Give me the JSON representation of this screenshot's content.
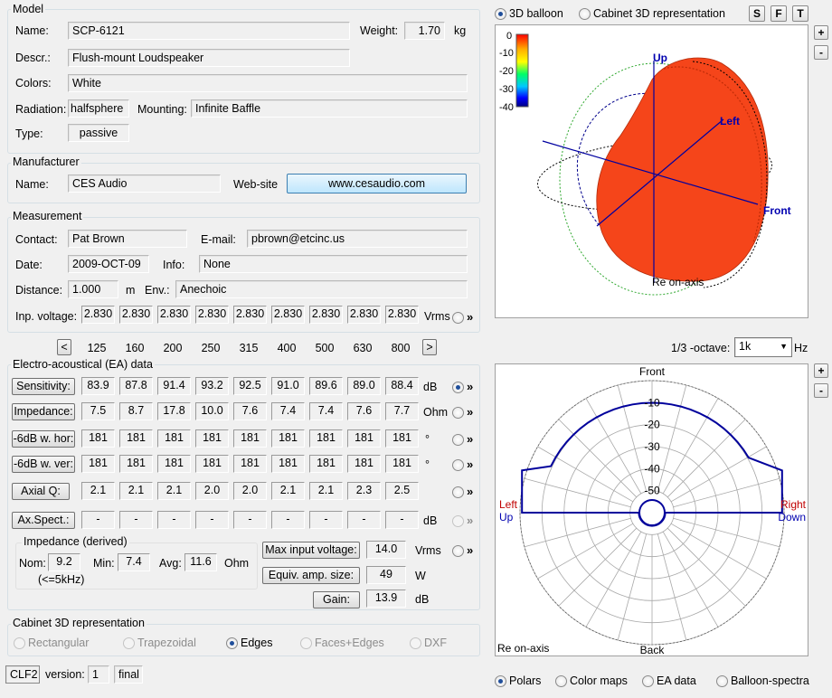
{
  "model": {
    "title": "Model",
    "name_label": "Name:",
    "name": "SCP-6121",
    "weight_label": "Weight:",
    "weight": "1.70",
    "weight_unit": "kg",
    "descr_label": "Descr.:",
    "descr": "Flush-mount Loudspeaker",
    "colors_label": "Colors:",
    "colors": "White",
    "radiation_label": "Radiation:",
    "radiation": "halfsphere",
    "mounting_label": "Mounting:",
    "mounting": "Infinite Baffle",
    "type_label": "Type:",
    "type": "passive"
  },
  "manufacturer": {
    "title": "Manufacturer",
    "name_label": "Name:",
    "name": "CES Audio",
    "website_label": "Web-site",
    "website": "www.cesaudio.com"
  },
  "measurement": {
    "title": "Measurement",
    "contact_label": "Contact:",
    "contact": "Pat Brown",
    "email_label": "E-mail:",
    "email": "pbrown@etcinc.us",
    "date_label": "Date:",
    "date": "2009-OCT-09",
    "info_label": "Info:",
    "info": "None",
    "distance_label": "Distance:",
    "distance": "1.000",
    "distance_unit": "m",
    "env_label": "Env.:",
    "env": "Anechoic",
    "inp_voltage_label": "Inp. voltage:",
    "inp_voltage": [
      "2.830",
      "2.830",
      "2.830",
      "2.830",
      "2.830",
      "2.830",
      "2.830",
      "2.830",
      "2.830"
    ],
    "inp_voltage_unit": "Vrms"
  },
  "frequencies": {
    "prev": "<",
    "next": ">",
    "values": [
      "125",
      "160",
      "200",
      "250",
      "315",
      "400",
      "500",
      "630",
      "800"
    ]
  },
  "ea": {
    "title": "Electro-acoustical (EA) data",
    "rows": [
      {
        "label": "Sensitivity:",
        "values": [
          "83.9",
          "87.8",
          "91.4",
          "93.2",
          "92.5",
          "91.0",
          "89.6",
          "89.0",
          "88.4"
        ],
        "unit": "dB"
      },
      {
        "label": "Impedance:",
        "values": [
          "7.5",
          "8.7",
          "17.8",
          "10.0",
          "7.6",
          "7.4",
          "7.4",
          "7.6",
          "7.7"
        ],
        "unit": "Ohm"
      },
      {
        "label": "-6dB w. hor:",
        "values": [
          "181",
          "181",
          "181",
          "181",
          "181",
          "181",
          "181",
          "181",
          "181"
        ],
        "unit": "°"
      },
      {
        "label": "-6dB w. ver:",
        "values": [
          "181",
          "181",
          "181",
          "181",
          "181",
          "181",
          "181",
          "181",
          "181"
        ],
        "unit": "°"
      },
      {
        "label": "Axial Q:",
        "values": [
          "2.1",
          "2.1",
          "2.1",
          "2.0",
          "2.0",
          "2.1",
          "2.1",
          "2.3",
          "2.5"
        ],
        "unit": ""
      },
      {
        "label": "Ax.Spect.:",
        "values": [
          "-",
          "-",
          "-",
          "-",
          "-",
          "-",
          "-",
          "-",
          "-"
        ],
        "unit": "dB"
      }
    ],
    "impedance_derived": {
      "title": "Impedance (derived)",
      "nom_label": "Nom:",
      "nom": "9.2",
      "nom_note": "(<=5kHz)",
      "min_label": "Min:",
      "min": "7.4",
      "avg_label": "Avg:",
      "avg": "11.6",
      "unit": "Ohm"
    },
    "max_input_label": "Max input voltage:",
    "max_input": "14.0",
    "max_input_unit": "Vrms",
    "equiv_amp_label": "Equiv. amp. size:",
    "equiv_amp": "49",
    "equiv_amp_unit": "W",
    "gain_label": "Gain:",
    "gain": "13.9",
    "gain_unit": "dB"
  },
  "cabinet": {
    "title": "Cabinet 3D representation",
    "options": [
      "Rectangular",
      "Trapezoidal",
      "Edges",
      "Faces+Edges",
      "DXF"
    ],
    "selected": "Edges"
  },
  "footer": {
    "clf": "CLF2",
    "version_label": "version:",
    "version": "1",
    "status": "final"
  },
  "top_view": {
    "options": [
      "3D balloon",
      "Cabinet 3D representation"
    ],
    "selected": "3D balloon",
    "buttons": [
      "S",
      "F",
      "T"
    ],
    "zoom_in": "+",
    "zoom_out": "-",
    "scale": [
      "0",
      "-10",
      "-20",
      "-30",
      "-40"
    ],
    "axis_up": "Up",
    "axis_left": "Left",
    "axis_front": "Front",
    "caption": "Re on-axis"
  },
  "octave": {
    "label": "1/3 -octave:",
    "value": "1k",
    "unit": "Hz"
  },
  "polar": {
    "top_label": "Front",
    "bottom_label": "Back",
    "left_label_1": "Left",
    "left_label_2": "Up",
    "right_label_1": "Right",
    "right_label_2": "Down",
    "rings": [
      "-10",
      "-20",
      "-30",
      "-40",
      "-50"
    ],
    "caption": "Re on-axis",
    "colors": {
      "curve": "#00009c",
      "left_red": "#c00000",
      "right_blue": "#0000b0"
    }
  },
  "bottom_tabs": {
    "options": [
      "Polars",
      "Color maps",
      "EA data",
      "Balloon-spectra"
    ],
    "selected": "Polars"
  }
}
